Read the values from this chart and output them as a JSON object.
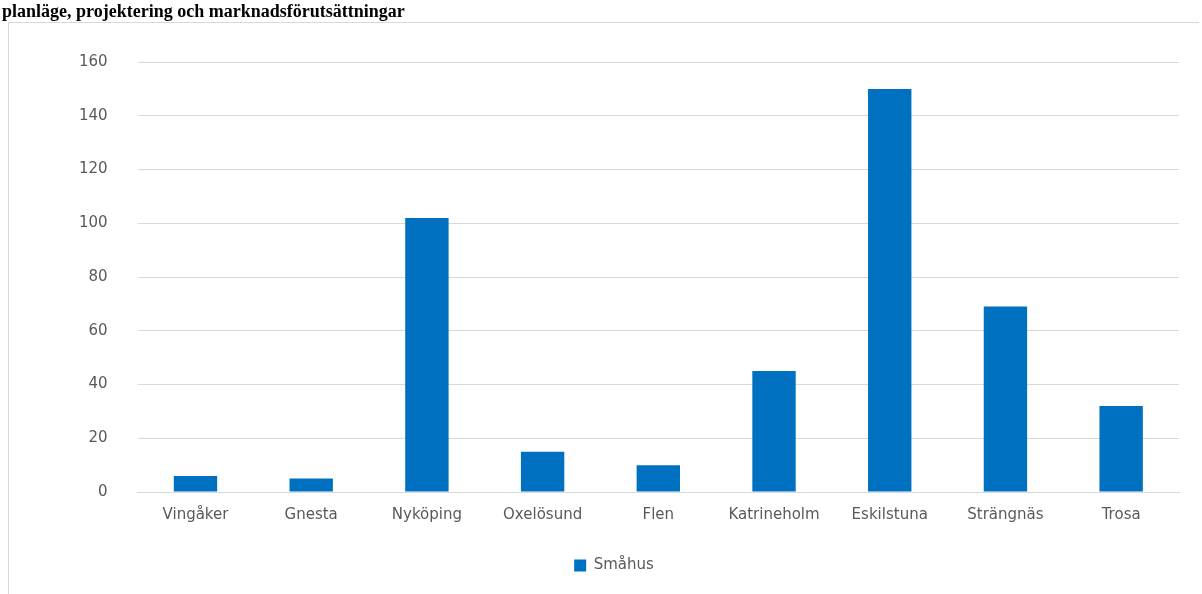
{
  "chart_data": {
    "type": "bar",
    "title": "planläge, projektering och marknadsförutsättningar",
    "categories": [
      "Vingåker",
      "Gnesta",
      "Nyköping",
      "Oxelösund",
      "Flen",
      "Katrineholm",
      "Eskilstuna",
      "Strängnäs",
      "Trosa"
    ],
    "series": [
      {
        "name": "Småhus",
        "color": "#0070c0",
        "values": [
          6,
          5,
          102,
          15,
          10,
          45,
          150,
          69,
          32
        ]
      }
    ],
    "ylim": [
      0,
      160
    ],
    "yticks": [
      0,
      20,
      40,
      60,
      80,
      100,
      120,
      140,
      160
    ],
    "grid": "y",
    "legend": "bottom"
  }
}
